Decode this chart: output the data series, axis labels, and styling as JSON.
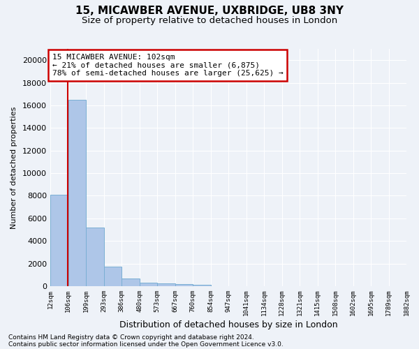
{
  "title1": "15, MICAWBER AVENUE, UXBRIDGE, UB8 3NY",
  "title2": "Size of property relative to detached houses in London",
  "xlabel": "Distribution of detached houses by size in London",
  "ylabel": "Number of detached properties",
  "footnote1": "Contains HM Land Registry data © Crown copyright and database right 2024.",
  "footnote2": "Contains public sector information licensed under the Open Government Licence v3.0.",
  "bar_left_edges": [
    12,
    106,
    199,
    293,
    386,
    480,
    573,
    667,
    760,
    854,
    947,
    1041,
    1134,
    1228,
    1321,
    1415,
    1508,
    1602,
    1695,
    1789
  ],
  "bar_widths": [
    94,
    93,
    94,
    93,
    94,
    93,
    94,
    93,
    94,
    93,
    94,
    93,
    94,
    93,
    94,
    93,
    94,
    93,
    94,
    93
  ],
  "bar_heights": [
    8100,
    16500,
    5200,
    1750,
    700,
    330,
    220,
    200,
    150,
    0,
    0,
    0,
    0,
    0,
    0,
    0,
    0,
    0,
    0,
    0
  ],
  "bar_color": "#aec6e8",
  "bar_edge_color": "#7aafd4",
  "property_sqm": 102,
  "vline_color": "#cc0000",
  "annotation_line1": "15 MICAWBER AVENUE: 102sqm",
  "annotation_line2": "← 21% of detached houses are smaller (6,875)",
  "annotation_line3": "78% of semi-detached houses are larger (25,625) →",
  "annotation_box_color": "#cc0000",
  "ylim": [
    0,
    21000
  ],
  "yticks": [
    0,
    2000,
    4000,
    6000,
    8000,
    10000,
    12000,
    14000,
    16000,
    18000,
    20000
  ],
  "tick_labels": [
    "12sqm",
    "106sqm",
    "199sqm",
    "293sqm",
    "386sqm",
    "480sqm",
    "573sqm",
    "667sqm",
    "760sqm",
    "854sqm",
    "947sqm",
    "1041sqm",
    "1134sqm",
    "1228sqm",
    "1321sqm",
    "1415sqm",
    "1508sqm",
    "1602sqm",
    "1695sqm",
    "1789sqm",
    "1882sqm"
  ],
  "background_color": "#eef2f8",
  "grid_color": "#ffffff",
  "title1_fontsize": 11,
  "title2_fontsize": 9.5,
  "annot_fontsize": 8,
  "ylabel_fontsize": 8,
  "xlabel_fontsize": 9,
  "footnote_fontsize": 6.5,
  "ytick_fontsize": 8,
  "xtick_fontsize": 6.5
}
